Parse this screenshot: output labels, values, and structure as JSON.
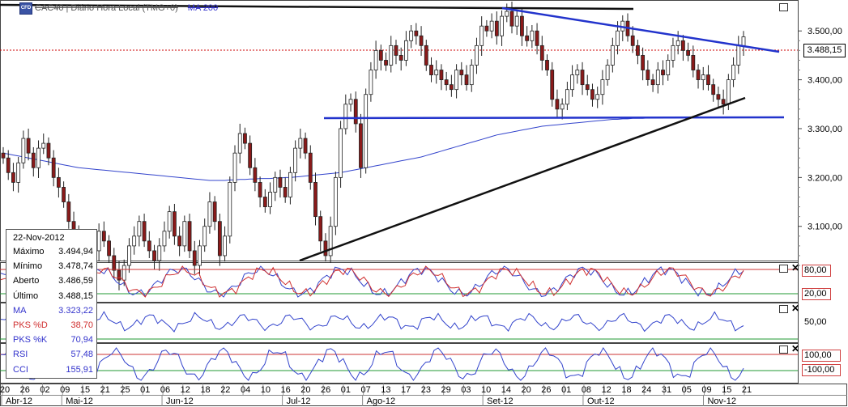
{
  "header": {
    "logo_text": "CFD",
    "title": "CAC40 | Diário Hora Local (TMG+0)",
    "ma_label": "MA 200"
  },
  "price_badge": "3.488,15",
  "info_box": {
    "date": "22-Nov-2012",
    "rows": [
      {
        "label": "Máximo",
        "value": "3.494,94",
        "color": "#000000"
      },
      {
        "label": "Mínimo",
        "value": "3.478,74",
        "color": "#000000"
      },
      {
        "label": "Aberto",
        "value": "3.486,59",
        "color": "#000000"
      },
      {
        "label": "Último",
        "value": "3.488,15",
        "color": "#000000"
      },
      {
        "label": "MA",
        "value": "3.323,22",
        "color": "#3333cc"
      },
      {
        "label": "PKS %D",
        "value": "38,70",
        "color": "#d03030"
      },
      {
        "label": "PKS %K",
        "value": "70,94",
        "color": "#3333cc"
      },
      {
        "label": "RSI",
        "value": "57,48",
        "color": "#3333cc"
      },
      {
        "label": "CCI",
        "value": "155,91",
        "color": "#3333cc"
      }
    ]
  },
  "indicator_badges": {
    "pks_upper": "80,00",
    "pks_lower": "20,00",
    "rsi_mid": "50,00",
    "cci_upper": "100,00",
    "cci_lower": "-100,00"
  },
  "chart_data": {
    "type": "candlestick",
    "y_ticks": [
      "3.100,00",
      "3.200,00",
      "3.300,00",
      "3.400,00",
      "3.500,00"
    ],
    "y_range": [
      3030,
      3560
    ],
    "x_day_labels": [
      "20",
      "26",
      "02",
      "09",
      "15",
      "21",
      "25",
      "01",
      "06",
      "12",
      "18",
      "22",
      "04",
      "10",
      "16",
      "20",
      "26",
      "01",
      "07",
      "13",
      "17",
      "23",
      "29",
      "03",
      "10",
      "14",
      "20",
      "26",
      "01",
      "08",
      "12",
      "18",
      "24",
      "31",
      "05",
      "09",
      "15",
      "21"
    ],
    "x_month_labels": [
      {
        "label": "Abr-12",
        "index": 0
      },
      {
        "label": "Mai-12",
        "index": 3
      },
      {
        "label": "Jun-12",
        "index": 8
      },
      {
        "label": "Jul-12",
        "index": 14
      },
      {
        "label": "Ago-12",
        "index": 18
      },
      {
        "label": "Set-12",
        "index": 24
      },
      {
        "label": "Out-12",
        "index": 29
      },
      {
        "label": "Nov-12",
        "index": 35
      }
    ],
    "closes": [
      3240,
      3210,
      3190,
      3230,
      3280,
      3250,
      3220,
      3260,
      3270,
      3240,
      3200,
      3180,
      3150,
      3110,
      3090,
      3070,
      3040,
      3020,
      3050,
      3090,
      3070,
      3040,
      3010,
      2990,
      3020,
      3060,
      3080,
      3110,
      3070,
      3050,
      3030,
      3060,
      3090,
      3130,
      3080,
      3060,
      3110,
      3050,
      3020,
      3060,
      3100,
      3150,
      3110,
      3040,
      3080,
      3190,
      3250,
      3290,
      3270,
      3220,
      3190,
      3160,
      3140,
      3170,
      3200,
      3180,
      3160,
      3210,
      3260,
      3280,
      3250,
      3190,
      3120,
      3070,
      3040,
      3100,
      3200,
      3300,
      3350,
      3360,
      3310,
      3220,
      3370,
      3420,
      3460,
      3440,
      3430,
      3470,
      3450,
      3440,
      3480,
      3500,
      3490,
      3470,
      3430,
      3410,
      3420,
      3400,
      3390,
      3380,
      3420,
      3410,
      3390,
      3430,
      3470,
      3510,
      3500,
      3520,
      3490,
      3530,
      3540,
      3510,
      3530,
      3490,
      3480,
      3500,
      3470,
      3440,
      3420,
      3360,
      3340,
      3350,
      3380,
      3410,
      3420,
      3390,
      3380,
      3360,
      3370,
      3400,
      3430,
      3470,
      3500,
      3520,
      3490,
      3470,
      3450,
      3420,
      3400,
      3390,
      3420,
      3410,
      3440,
      3470,
      3480,
      3460,
      3450,
      3420,
      3400,
      3410,
      3390,
      3370,
      3360,
      3350,
      3400,
      3430,
      3470,
      3488
    ],
    "ma200": [
      3250,
      3248,
      3246,
      3244,
      3242,
      3240,
      3238,
      3236,
      3234,
      3232,
      3230,
      3228,
      3226,
      3224,
      3222,
      3220,
      3219,
      3218,
      3217,
      3216,
      3215,
      3214,
      3213,
      3212,
      3211,
      3210,
      3209,
      3208,
      3207,
      3206,
      3205,
      3204,
      3203,
      3202,
      3201,
      3200,
      3199,
      3198,
      3197,
      3196,
      3195,
      3194,
      3194,
      3194,
      3194,
      3195,
      3195,
      3196,
      3196,
      3197,
      3197,
      3198,
      3198,
      3198,
      3199,
      3199,
      3200,
      3200,
      3201,
      3202,
      3203,
      3204,
      3205,
      3206,
      3207,
      3208,
      3209,
      3210,
      3212,
      3214,
      3216,
      3218,
      3220,
      3222,
      3224,
      3226,
      3228,
      3230,
      3232,
      3234,
      3236,
      3238,
      3240,
      3242,
      3245,
      3248,
      3251,
      3254,
      3257,
      3260,
      3263,
      3266,
      3269,
      3272,
      3275,
      3278,
      3281,
      3284,
      3287,
      3289,
      3291,
      3293,
      3295,
      3297,
      3299,
      3301,
      3303,
      3305,
      3306,
      3307,
      3308,
      3309,
      3310,
      3311,
      3312,
      3313,
      3314,
      3315,
      3316,
      3317,
      3318,
      3319,
      3319,
      3320,
      3320,
      3321,
      3321,
      3321,
      3322,
      3322,
      3322,
      3322,
      3322,
      3323,
      3323,
      3323,
      3323,
      3323,
      3323,
      3323,
      3323,
      3323,
      3323,
      3323,
      3323,
      3323,
      3323,
      3323,
      3323,
      3323
    ]
  }
}
